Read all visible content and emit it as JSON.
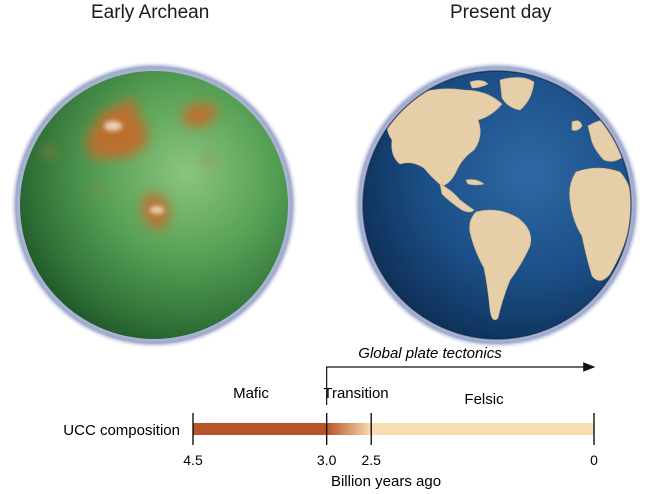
{
  "left_globe": {
    "title": "Early Archean"
  },
  "right_globe": {
    "title": "Present day"
  },
  "timeline": {
    "row_label": "UCC composition",
    "axis_label": "Billion years ago",
    "tectonics_label": "Global plate tectonics",
    "ticks": [
      "4.5",
      "3.0",
      "2.5",
      "0"
    ],
    "phases": [
      {
        "label": "Mafic",
        "from": 4.5,
        "to": 3.0,
        "color": "#b9532a"
      },
      {
        "label": "Transition",
        "from": 3.0,
        "to": 2.5,
        "color": "#e2a36b"
      },
      {
        "label": "Felsic",
        "from": 2.5,
        "to": 0,
        "color": "#f8dcb2"
      }
    ]
  }
}
